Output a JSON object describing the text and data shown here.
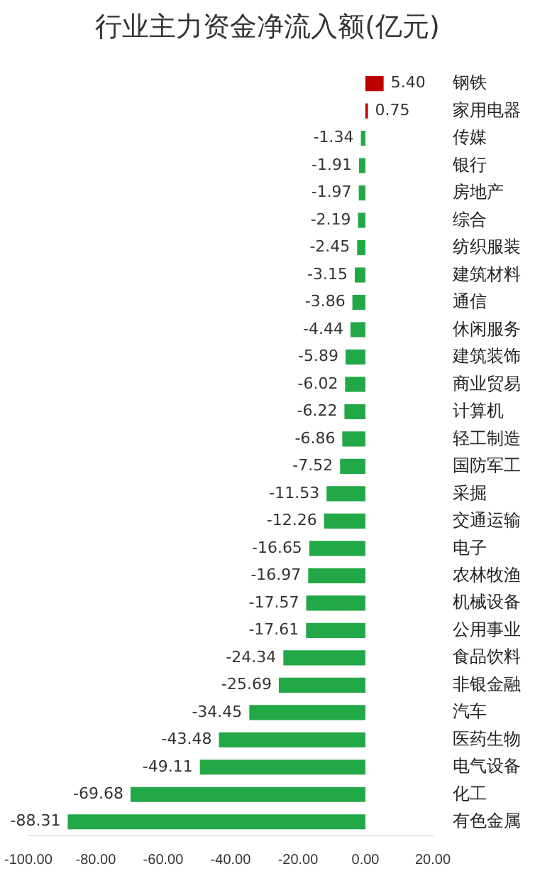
{
  "chart_data": {
    "type": "bar",
    "orientation": "horizontal",
    "title": "行业主力资金净流入额(亿元)",
    "categories": [
      "钢铁",
      "家用电器",
      "传媒",
      "银行",
      "房地产",
      "综合",
      "纺织服装",
      "建筑材料",
      "通信",
      "休闲服务",
      "建筑装饰",
      "商业贸易",
      "计算机",
      "轻工制造",
      "国防军工",
      "采掘",
      "交通运输",
      "电子",
      "农林牧渔",
      "机械设备",
      "公用事业",
      "食品饮料",
      "非银金融",
      "汽车",
      "医药生物",
      "电气设备",
      "化工",
      "有色金属"
    ],
    "values": [
      5.4,
      0.75,
      -1.34,
      -1.91,
      -1.97,
      -2.19,
      -2.45,
      -3.15,
      -3.86,
      -4.44,
      -5.89,
      -6.02,
      -6.22,
      -6.86,
      -7.52,
      -11.53,
      -12.26,
      -16.65,
      -16.97,
      -17.57,
      -17.61,
      -24.34,
      -25.69,
      -34.45,
      -43.48,
      -49.11,
      -69.68,
      -88.31
    ],
    "value_labels": [
      "5.40",
      "0.75",
      "-1.34",
      "-1.91",
      "-1.97",
      "-2.19",
      "-2.45",
      "-3.15",
      "-3.86",
      "-4.44",
      "-5.89",
      "-6.02",
      "-6.22",
      "-6.86",
      "-7.52",
      "-11.53",
      "-12.26",
      "-16.65",
      "-16.97",
      "-17.57",
      "-17.61",
      "-24.34",
      "-25.69",
      "-34.45",
      "-43.48",
      "-49.11",
      "-69.68",
      "-88.31"
    ],
    "colors": [
      "#c00000",
      "#c00000",
      "#22a846",
      "#22a846",
      "#22a846",
      "#22a846",
      "#22a846",
      "#22a846",
      "#22a846",
      "#22a846",
      "#22a846",
      "#22a846",
      "#22a846",
      "#22a846",
      "#22a846",
      "#22a846",
      "#22a846",
      "#22a846",
      "#22a846",
      "#22a846",
      "#22a846",
      "#22a846",
      "#22a846",
      "#22a846",
      "#22a846",
      "#22a846",
      "#22a846",
      "#22a846"
    ],
    "xlim": [
      -100,
      20
    ],
    "xticks": [
      {
        "value": -100,
        "label": "-100.00"
      },
      {
        "value": -80,
        "label": "-80.00"
      },
      {
        "value": -60,
        "label": "-60.00"
      },
      {
        "value": -40,
        "label": "-40.00"
      },
      {
        "value": -20,
        "label": "-20.00"
      },
      {
        "value": 0,
        "label": "0.00"
      },
      {
        "value": 20,
        "label": "20.00"
      }
    ],
    "grid": false,
    "legend": false
  }
}
